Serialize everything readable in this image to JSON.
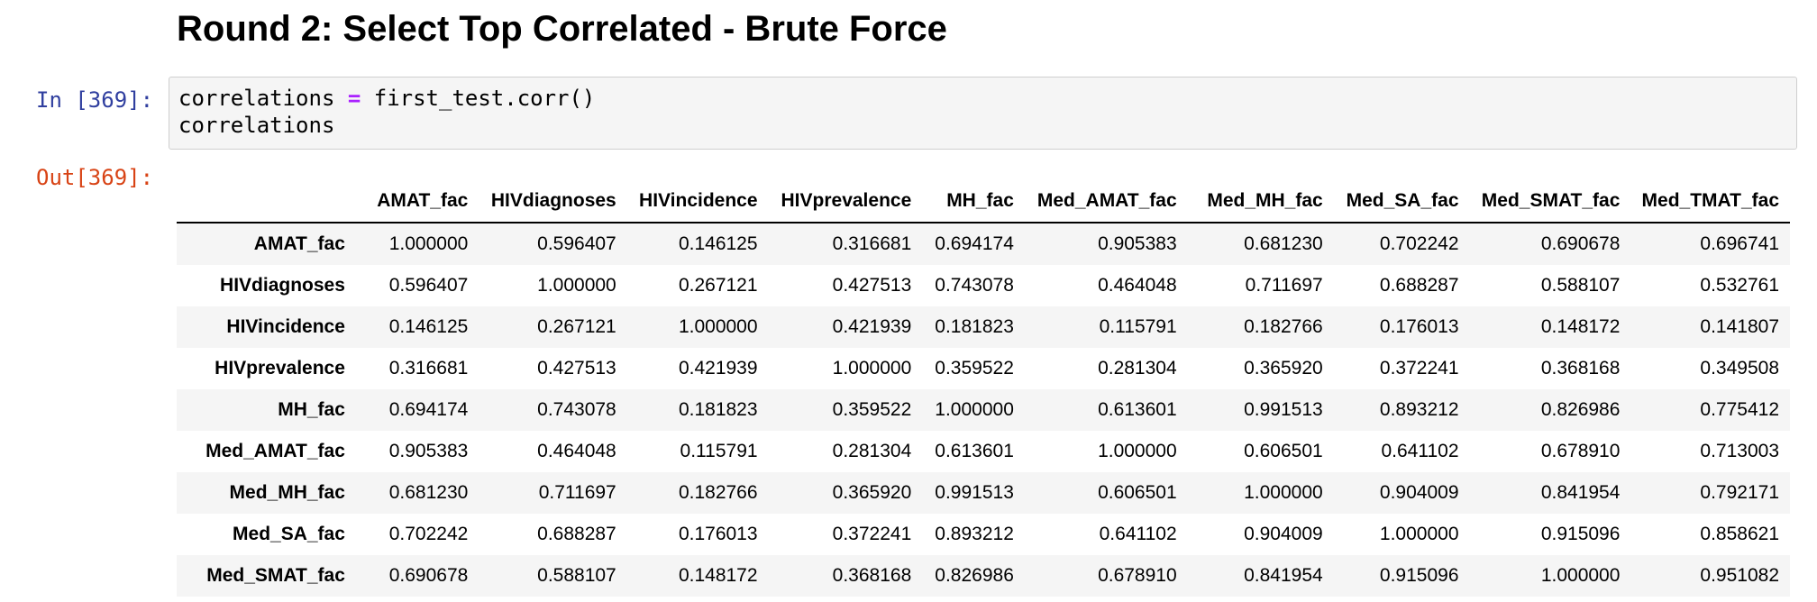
{
  "heading": "Round 2: Select Top Correlated - Brute Force",
  "input_prompt": "In [369]:",
  "output_prompt": "Out[369]:",
  "code": {
    "line1_a": "correlations ",
    "line1_op": "=",
    "line1_b": " first_test.corr()",
    "line2": "correlations"
  },
  "table": {
    "columns": [
      "AMAT_fac",
      "HIVdiagnoses",
      "HIVincidence",
      "HIVprevalence",
      "MH_fac",
      "Med_AMAT_fac",
      "Med_MH_fac",
      "Med_SA_fac",
      "Med_SMAT_fac",
      "Med_TMAT_fac"
    ],
    "rows": [
      {
        "label": "AMAT_fac",
        "values": [
          "1.000000",
          "0.596407",
          "0.146125",
          "0.316681",
          "0.694174",
          "0.905383",
          "0.681230",
          "0.702242",
          "0.690678",
          "0.696741"
        ]
      },
      {
        "label": "HIVdiagnoses",
        "values": [
          "0.596407",
          "1.000000",
          "0.267121",
          "0.427513",
          "0.743078",
          "0.464048",
          "0.711697",
          "0.688287",
          "0.588107",
          "0.532761"
        ]
      },
      {
        "label": "HIVincidence",
        "values": [
          "0.146125",
          "0.267121",
          "1.000000",
          "0.421939",
          "0.181823",
          "0.115791",
          "0.182766",
          "0.176013",
          "0.148172",
          "0.141807"
        ]
      },
      {
        "label": "HIVprevalence",
        "values": [
          "0.316681",
          "0.427513",
          "0.421939",
          "1.000000",
          "0.359522",
          "0.281304",
          "0.365920",
          "0.372241",
          "0.368168",
          "0.349508"
        ]
      },
      {
        "label": "MH_fac",
        "values": [
          "0.694174",
          "0.743078",
          "0.181823",
          "0.359522",
          "1.000000",
          "0.613601",
          "0.991513",
          "0.893212",
          "0.826986",
          "0.775412"
        ]
      },
      {
        "label": "Med_AMAT_fac",
        "values": [
          "0.905383",
          "0.464048",
          "0.115791",
          "0.281304",
          "0.613601",
          "1.000000",
          "0.606501",
          "0.641102",
          "0.678910",
          "0.713003"
        ]
      },
      {
        "label": "Med_MH_fac",
        "values": [
          "0.681230",
          "0.711697",
          "0.182766",
          "0.365920",
          "0.991513",
          "0.606501",
          "1.000000",
          "0.904009",
          "0.841954",
          "0.792171"
        ]
      },
      {
        "label": "Med_SA_fac",
        "values": [
          "0.702242",
          "0.688287",
          "0.176013",
          "0.372241",
          "0.893212",
          "0.641102",
          "0.904009",
          "1.000000",
          "0.915096",
          "0.858621"
        ]
      },
      {
        "label": "Med_SMAT_fac",
        "values": [
          "0.690678",
          "0.588107",
          "0.148172",
          "0.368168",
          "0.826986",
          "0.678910",
          "0.841954",
          "0.915096",
          "1.000000",
          "0.951082"
        ]
      }
    ]
  }
}
